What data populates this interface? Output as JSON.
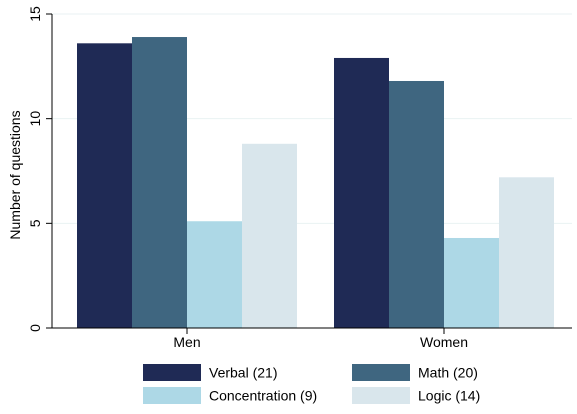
{
  "chart_data": {
    "type": "bar",
    "categories": [
      "Men",
      "Women"
    ],
    "series": [
      {
        "name": "Verbal (21)",
        "values": [
          13.6,
          12.9
        ],
        "color": "#1f2a55"
      },
      {
        "name": "Math (20)",
        "values": [
          13.9,
          11.8
        ],
        "color": "#3f6680"
      },
      {
        "name": "Concentration (9)",
        "values": [
          5.1,
          4.3
        ],
        "color": "#add8e6"
      },
      {
        "name": "Logic (14)",
        "values": [
          8.8,
          7.2
        ],
        "color": "#d9e6ec"
      }
    ],
    "ylabel": "Number of questions",
    "ylim": [
      0,
      15
    ],
    "yticks": [
      "0",
      "5",
      "10",
      "15"
    ],
    "grid": true,
    "legend": "bottom"
  }
}
